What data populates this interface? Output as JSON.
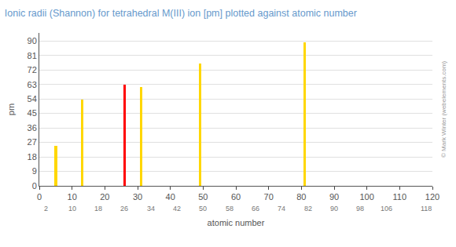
{
  "chart_data": {
    "type": "bar",
    "title": "Ionic radii (Shannon) for tetrahedral M(III) ion [pm] plotted against atomic number",
    "x_label": "atomic number",
    "y_label": "pm",
    "x": [
      5,
      13,
      26,
      31,
      49,
      81
    ],
    "values": [
      25,
      53.5,
      63,
      61.5,
      76,
      89
    ],
    "colors": [
      "#FFD700",
      "#FFD700",
      "#FF0000",
      "#FFD700",
      "#FFD700",
      "#FFD700"
    ],
    "xlim": [
      0,
      120
    ],
    "xticks": [
      0,
      10,
      20,
      30,
      40,
      50,
      60,
      70,
      80,
      90,
      100,
      110,
      120
    ],
    "ylim": [
      0,
      95
    ],
    "yticks": [
      0,
      9,
      18,
      27,
      36,
      45,
      54,
      63,
      72,
      81,
      90
    ],
    "grid": true,
    "annotations": [
      {
        "text": "2",
        "x": 2
      },
      {
        "text": "10",
        "x": 10
      },
      {
        "text": "18",
        "x": 18
      },
      {
        "text": "26",
        "x": 26
      },
      {
        "text": "34",
        "x": 34
      },
      {
        "text": "42",
        "x": 42
      },
      {
        "text": "50",
        "x": 50
      },
      {
        "text": "58",
        "x": 58
      },
      {
        "text": "66",
        "x": 66
      },
      {
        "text": "74",
        "x": 74
      },
      {
        "text": "82",
        "x": 82
      },
      {
        "text": "90",
        "x": 90
      },
      {
        "text": "98",
        "x": 98
      },
      {
        "text": "106",
        "x": 106
      },
      {
        "text": "118",
        "x": 118
      },
      {
        "text": "© Mark Winter (webelements.com)"
      }
    ]
  }
}
